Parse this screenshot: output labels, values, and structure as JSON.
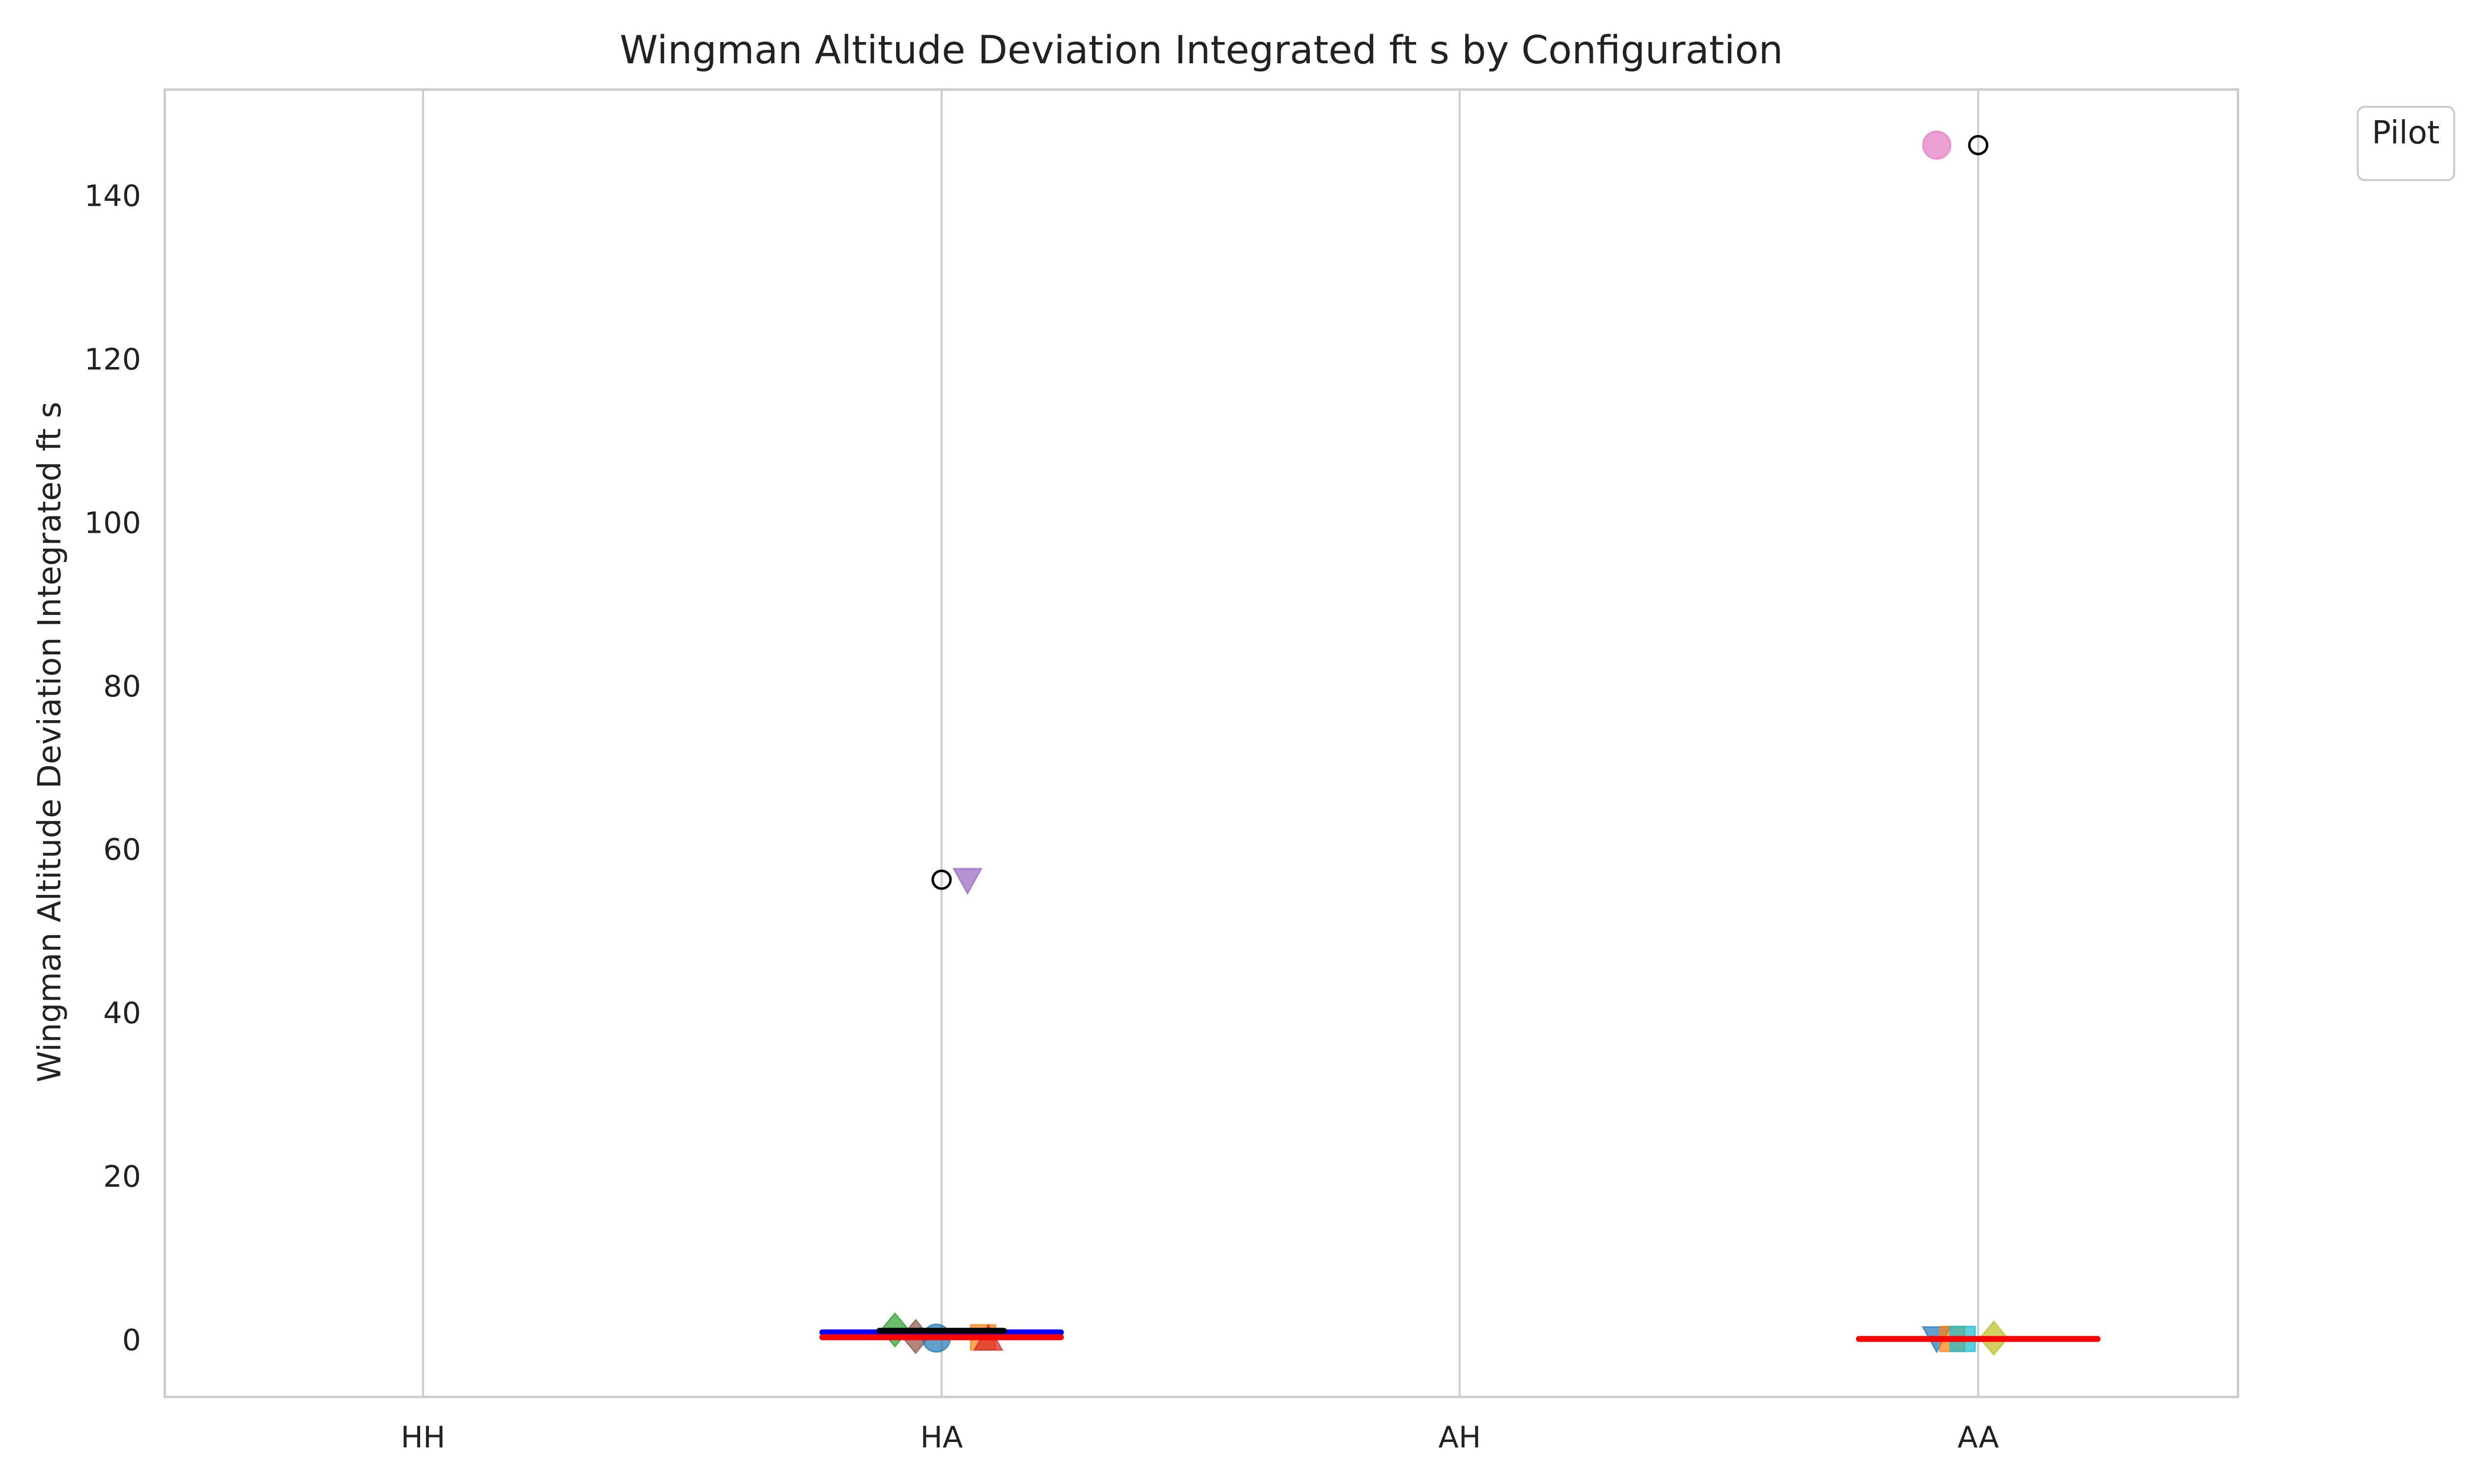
{
  "chart_data": {
    "type": "scatter",
    "title": "Wingman Altitude Deviation Integrated ft s by Configuration",
    "xlabel": "",
    "ylabel": "Wingman Altitude Deviation Integrated ft s",
    "categories": [
      "HH",
      "HA",
      "AH",
      "AA"
    ],
    "ylim": [
      -7,
      153
    ],
    "yticks": [
      0,
      20,
      40,
      60,
      80,
      100,
      120,
      140
    ],
    "grid": "vertical",
    "legend": {
      "title": "Pilot",
      "position": "outside-top-right"
    },
    "points": [
      {
        "category": "HA",
        "offset": -0.09,
        "y": 1.2,
        "marker": "diamond",
        "color": "#2ca02c"
      },
      {
        "category": "HA",
        "offset": -0.05,
        "y": 0.4,
        "marker": "diamond",
        "color": "#8c564b"
      },
      {
        "category": "HA",
        "offset": -0.01,
        "y": 0.2,
        "marker": "circle",
        "color": "#1f77b4"
      },
      {
        "category": "HA",
        "offset": 0.08,
        "y": 0.3,
        "marker": "square",
        "color": "#ff7f0e"
      },
      {
        "category": "HA",
        "offset": 0.09,
        "y": 0.1,
        "marker": "triangle-up",
        "color": "#d62728"
      },
      {
        "category": "HA",
        "offset": 0.05,
        "y": 56.3,
        "marker": "triangle-down",
        "color": "#9467bd"
      },
      {
        "category": "AA",
        "offset": -0.08,
        "y": 146.2,
        "marker": "circle",
        "color": "#e377c2"
      },
      {
        "category": "AA",
        "offset": -0.08,
        "y": 0.2,
        "marker": "triangle-down",
        "color": "#1f77b4"
      },
      {
        "category": "AA",
        "offset": -0.05,
        "y": 0.1,
        "marker": "square",
        "color": "#ff7f0e"
      },
      {
        "category": "AA",
        "offset": -0.03,
        "y": 0.1,
        "marker": "square",
        "color": "#17becf"
      },
      {
        "category": "AA",
        "offset": 0.03,
        "y": 0.2,
        "marker": "diamond",
        "color": "#bcbd22"
      }
    ],
    "outliers": [
      {
        "category": "HA",
        "y": 56.3
      },
      {
        "category": "AA",
        "y": 146.2
      }
    ],
    "summary_lines": [
      {
        "category": "HA",
        "y": 0.9,
        "color": "#0000ff",
        "width": 0.23
      },
      {
        "category": "HA",
        "y": 0.3,
        "color": "#ff0000",
        "width": 0.23
      },
      {
        "category": "HA",
        "y": 1.1,
        "color": "#000000",
        "width": 0.12
      },
      {
        "category": "AA",
        "y": 0.1,
        "color": "#ff0000",
        "width": 0.23
      }
    ]
  }
}
